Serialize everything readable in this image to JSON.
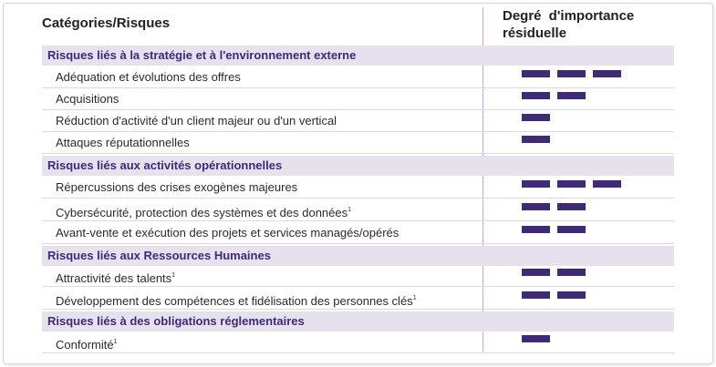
{
  "header": {
    "categories_label": "Catégories/Risques",
    "importance_label": "Degré d'importance résiduelle"
  },
  "colors": {
    "bar": "#3f2a75",
    "category_bg": "#e7e1ee",
    "category_text": "#3b2b78",
    "divider": "#c9a9cf"
  },
  "groups": [
    {
      "title": "Risques liés à la stratégie et à l'environnement externe",
      "items": [
        {
          "label": "Adéquation et évolutions des offres",
          "note": "",
          "level": 3
        },
        {
          "label": "Acquisitions",
          "note": "",
          "level": 2
        },
        {
          "label": "Réduction d'activité d'un client majeur ou d'un vertical",
          "note": "",
          "level": 1
        },
        {
          "label": "Attaques réputationnelles",
          "note": "",
          "level": 1
        }
      ]
    },
    {
      "title": "Risques liés aux activités opérationnelles",
      "items": [
        {
          "label": "Répercussions des crises exogènes majeures",
          "note": "",
          "level": 3
        },
        {
          "label": "Cybersécurité, protection des systèmes et des données",
          "note": "1",
          "level": 2
        },
        {
          "label": "Avant-vente et exécution des projets et services managés/opérés",
          "note": "",
          "level": 2
        }
      ]
    },
    {
      "title": "Risques liés aux Ressources Humaines",
      "items": [
        {
          "label": "Attractivité des talents",
          "note": "1",
          "level": 2
        },
        {
          "label": "Développement des compétences et fidélisation des personnes clés",
          "note": "1",
          "level": 2
        }
      ]
    },
    {
      "title": "Risques liés à des obligations réglementaires",
      "items": [
        {
          "label": "Conformité",
          "note": "1",
          "level": 1
        }
      ]
    }
  ]
}
